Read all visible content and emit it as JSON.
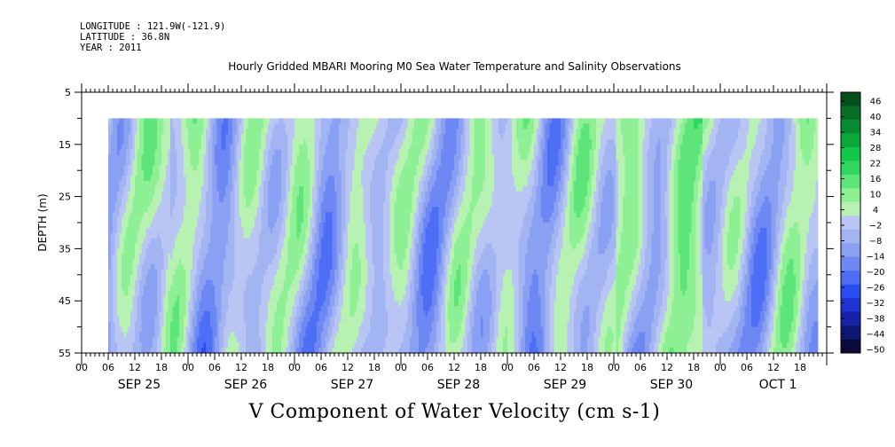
{
  "meta": {
    "longitude": "LONGITUDE : 121.9W(-121.9)",
    "latitude": "LATITUDE : 36.8N",
    "year": "YEAR : 2011"
  },
  "chart_data": {
    "type": "heatmap",
    "title": "Hourly Gridded MBARI Mooring M0 Sea Water Temperature and Salinity Observations",
    "xlabel": "V Component of Water Velocity (cm s-1)",
    "ylabel": "DEPTH (m)",
    "ylim": [
      55,
      5
    ],
    "y_ticks": [
      5,
      15,
      25,
      35,
      45,
      55
    ],
    "x_hour_labels": [
      "00",
      "06",
      "12",
      "18",
      "00",
      "06",
      "12",
      "18",
      "00",
      "06",
      "12",
      "18",
      "00",
      "06",
      "12",
      "18",
      "00",
      "06",
      "12",
      "18",
      "00",
      "06",
      "12",
      "18",
      "00",
      "06",
      "12",
      "18"
    ],
    "x_day_labels": [
      "SEP 25",
      "SEP 26",
      "SEP 27",
      "SEP 28",
      "SEP 29",
      "SEP 30",
      "OCT  1"
    ],
    "data_depth_range": [
      10,
      55
    ],
    "data_time_range_hours": [
      6,
      166
    ],
    "colorbar": {
      "labels": [
        "46",
        "40",
        "34",
        "28",
        "22",
        "16",
        "10",
        "4",
        "−2",
        "−8",
        "−14",
        "−20",
        "−26",
        "−32",
        "−38",
        "−44",
        "−50"
      ],
      "range": [
        -50,
        50
      ],
      "colors": [
        "#0a0a3c",
        "#0e1673",
        "#1622a8",
        "#1f33d2",
        "#2b4cf0",
        "#4d6ef5",
        "#6e88f3",
        "#8aa0f2",
        "#a3b4f2",
        "#b9c6f4",
        "#b8f2b3",
        "#8ef095",
        "#5ee57a",
        "#30d660",
        "#12c74a",
        "#0aa83a",
        "#088a30",
        "#066d26",
        "#04501c"
      ]
    },
    "series_summary": "V-velocity by depth and time, mostly between -20 and +22 cm/s"
  }
}
